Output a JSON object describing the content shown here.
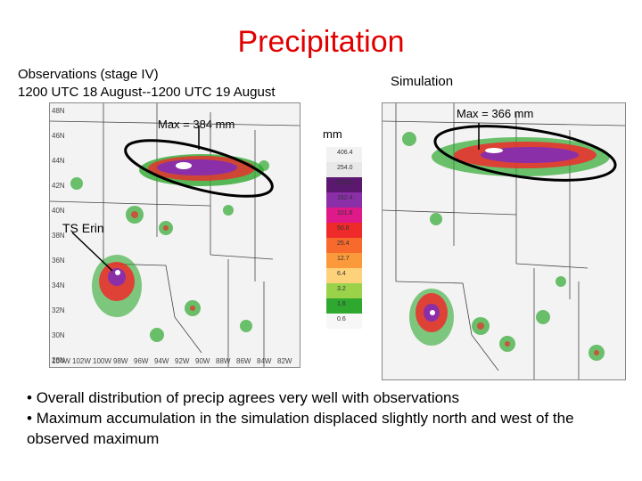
{
  "title": "Precipitation",
  "observations": {
    "heading_line1": "Observations (stage IV)",
    "heading_line2": "1200 UTC 18 August--1200 UTC 19 August",
    "max_label": "Max = 384 mm",
    "storm_label": "TS Erin",
    "lat_ticks": [
      "48N",
      "46N",
      "44N",
      "42N",
      "40N",
      "38N",
      "36N",
      "34N",
      "32N",
      "30N",
      "28N"
    ],
    "lon_ticks": [
      "104W",
      "102W",
      "100W",
      "98W",
      "96W",
      "94W",
      "92W",
      "90W",
      "88W",
      "86W",
      "84W",
      "82W"
    ]
  },
  "simulation": {
    "heading": "Simulation",
    "max_label": "Max = 366 mm"
  },
  "legend": {
    "unit": "mm",
    "bins": [
      {
        "label": "406.4",
        "color": "#f2f2f2"
      },
      {
        "label": "254.0",
        "color": "#e8e8e8"
      },
      {
        "label": "203.2",
        "color": "#5a186e"
      },
      {
        "label": "152.4",
        "color": "#8b2fa8"
      },
      {
        "label": "101.6",
        "color": "#e0198a"
      },
      {
        "label": "50.8",
        "color": "#ee2a2a"
      },
      {
        "label": "25.4",
        "color": "#f86a2c"
      },
      {
        "label": "12.7",
        "color": "#fb9a3a"
      },
      {
        "label": "6.4",
        "color": "#fdd27a"
      },
      {
        "label": "3.2",
        "color": "#9ad24a"
      },
      {
        "label": "1.6",
        "color": "#2fa82f"
      },
      {
        "label": "0.6",
        "color": "#f7f7f7"
      }
    ]
  },
  "bullets": [
    "Overall distribution of precip agrees very well with observations",
    "Maximum accumulation in the simulation displaced slightly north and west of the observed maximum"
  ]
}
